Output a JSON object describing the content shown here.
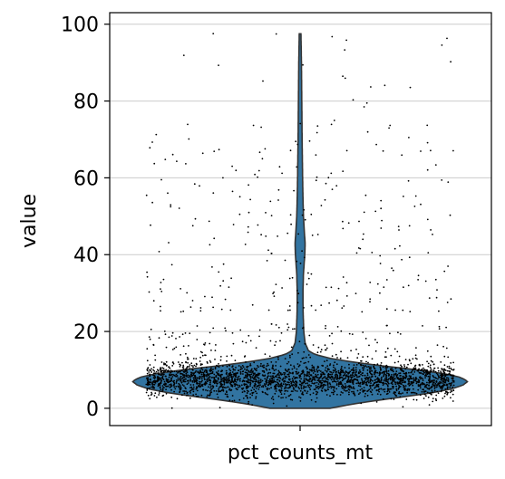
{
  "chart_data": {
    "type": "violin",
    "title": "",
    "xlabel": "",
    "ylabel": "value",
    "categories": [
      "pct_counts_mt"
    ],
    "ylim": [
      -4.5,
      103
    ],
    "yticks": [
      0,
      20,
      40,
      60,
      80,
      100
    ],
    "grid": true,
    "violin": {
      "fill_color": "#3274a1",
      "edge_color": "#333333",
      "median": 7,
      "min": 0,
      "max": 97.5,
      "density_profile": [
        [
          0,
          0.18
        ],
        [
          1,
          0.3
        ],
        [
          2,
          0.45
        ],
        [
          3,
          0.62
        ],
        [
          4,
          0.78
        ],
        [
          5,
          0.9
        ],
        [
          6,
          0.97
        ],
        [
          7,
          1.0
        ],
        [
          8,
          0.96
        ],
        [
          9,
          0.86
        ],
        [
          10,
          0.7
        ],
        [
          11,
          0.5
        ],
        [
          12,
          0.32
        ],
        [
          13,
          0.18
        ],
        [
          14,
          0.09
        ],
        [
          15,
          0.05
        ],
        [
          17,
          0.03
        ],
        [
          20,
          0.022
        ],
        [
          25,
          0.018
        ],
        [
          30,
          0.017
        ],
        [
          35,
          0.02
        ],
        [
          40,
          0.028
        ],
        [
          43,
          0.03
        ],
        [
          46,
          0.025
        ],
        [
          50,
          0.02
        ],
        [
          55,
          0.017
        ],
        [
          60,
          0.015
        ],
        [
          70,
          0.012
        ],
        [
          80,
          0.01
        ],
        [
          90,
          0.008
        ],
        [
          97.5,
          0.005
        ]
      ]
    },
    "points": {
      "color": "#000000",
      "bulk_center": 7.5,
      "bulk_spread": 2.2,
      "n_bulk": 2600,
      "n_outliers": 420,
      "outlier_range": [
        12,
        98
      ]
    }
  }
}
